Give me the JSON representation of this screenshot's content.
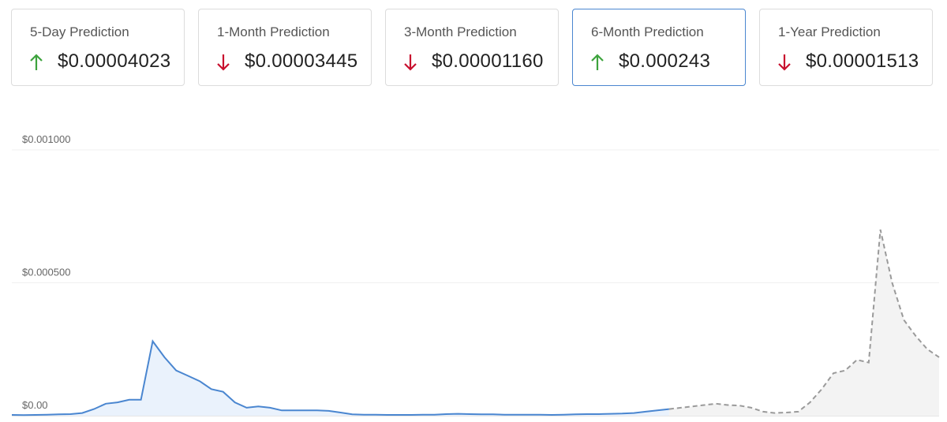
{
  "cards": [
    {
      "label": "5-Day Prediction",
      "direction": "up",
      "value": "$0.00004023",
      "selected": false
    },
    {
      "label": "1-Month Prediction",
      "direction": "down",
      "value": "$0.00003445",
      "selected": false
    },
    {
      "label": "3-Month Prediction",
      "direction": "down",
      "value": "$0.00001160",
      "selected": false
    },
    {
      "label": "6-Month Prediction",
      "direction": "up",
      "value": "$0.000243",
      "selected": true
    },
    {
      "label": "1-Year Prediction",
      "direction": "down",
      "value": "$0.00001513",
      "selected": false
    }
  ],
  "chart_data": {
    "type": "line",
    "ylim": [
      0,
      0.001
    ],
    "yticks": [
      {
        "value": 0,
        "label": "$0.00"
      },
      {
        "value": 0.0005,
        "label": "$0.000500"
      },
      {
        "value": 0.001,
        "label": "$0.001000"
      }
    ],
    "grid": true,
    "series": [
      {
        "color": "#4a86d0",
        "dashed": false,
        "fill": "#eaf2fc",
        "values": [
          3e-06,
          2e-06,
          3e-06,
          4e-06,
          5e-06,
          6e-06,
          1e-05,
          2.5e-05,
          4.5e-05,
          5e-05,
          6e-05,
          6e-05,
          0.00028,
          0.00022,
          0.00017,
          0.00015,
          0.00013,
          0.0001,
          9e-05,
          5e-05,
          3e-05,
          3.5e-05,
          3e-05,
          2e-05,
          2e-05,
          2e-05,
          2e-05,
          1.8e-05,
          1.2e-05,
          5e-06,
          4e-06,
          4e-06,
          3e-06,
          3e-06,
          3e-06,
          4e-06,
          4e-06,
          6e-06,
          7e-06,
          6e-06,
          5e-06,
          5e-06,
          4e-06,
          4e-06,
          4e-06,
          4e-06,
          3e-06,
          4e-06,
          5e-06,
          6e-06,
          6e-06,
          7e-06,
          8e-06,
          1e-05,
          1.5e-05,
          2e-05,
          2.5e-05,
          null,
          null,
          null,
          null,
          null,
          null,
          null,
          null,
          null,
          null,
          null,
          null,
          null,
          null,
          null,
          null,
          null,
          null,
          null,
          null,
          null,
          null,
          null
        ]
      },
      {
        "color": "#9a9a9a",
        "dashed": true,
        "fill": "#f3f3f3",
        "values": [
          null,
          null,
          null,
          null,
          null,
          null,
          null,
          null,
          null,
          null,
          null,
          null,
          null,
          null,
          null,
          null,
          null,
          null,
          null,
          null,
          null,
          null,
          null,
          null,
          null,
          null,
          null,
          null,
          null,
          null,
          null,
          null,
          null,
          null,
          null,
          null,
          null,
          null,
          null,
          null,
          null,
          null,
          null,
          null,
          null,
          null,
          null,
          null,
          null,
          null,
          null,
          null,
          null,
          null,
          null,
          null,
          2.5e-05,
          3e-05,
          3.5e-05,
          4e-05,
          4.5e-05,
          4e-05,
          3.8e-05,
          3e-05,
          1.5e-05,
          1e-05,
          1.2e-05,
          1.5e-05,
          5e-05,
          0.0001,
          0.00016,
          0.00017,
          0.00021,
          0.0002,
          0.0007,
          0.0005,
          0.00036,
          0.0003,
          0.00025,
          0.00022
        ]
      }
    ]
  }
}
